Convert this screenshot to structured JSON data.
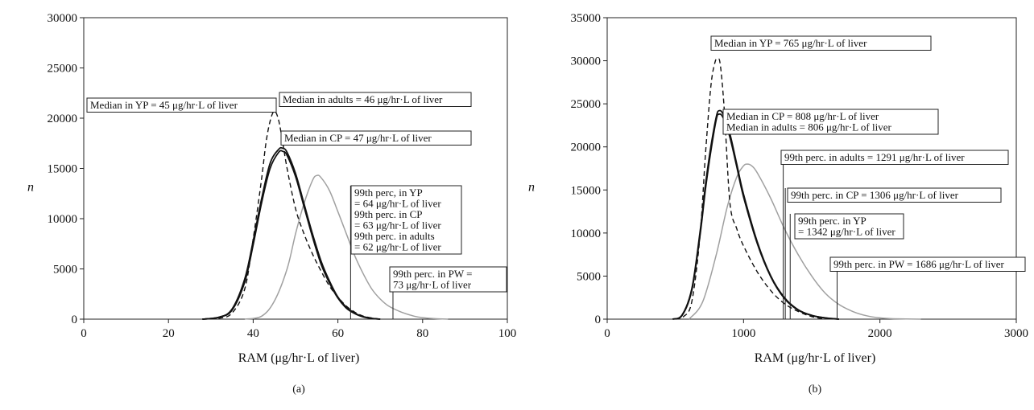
{
  "chart_data": [
    {
      "type": "line",
      "panel_label": "(a)",
      "xlabel": "RAM (μg/hr·L of liver)",
      "ylabel": "n",
      "xlim": [
        0,
        100
      ],
      "ylim": [
        0,
        30000
      ],
      "xticks": [
        0,
        20,
        40,
        60,
        80,
        100
      ],
      "yticks": [
        0,
        5000,
        10000,
        15000,
        20000,
        25000,
        30000
      ],
      "grid": false,
      "series": [
        {
          "key": "YP",
          "style": "dashed",
          "color": "#111111",
          "x": [
            28,
            32,
            35,
            38,
            40,
            42,
            43,
            44,
            45,
            46,
            47,
            48,
            50,
            52,
            54,
            56,
            58,
            60,
            62,
            64,
            66,
            68,
            70
          ],
          "y": [
            0,
            100,
            600,
            3000,
            8000,
            14000,
            17500,
            19700,
            20700,
            19800,
            17500,
            15000,
            11000,
            8500,
            6500,
            4800,
            3300,
            2200,
            1300,
            700,
            300,
            120,
            0
          ]
        },
        {
          "key": "CP",
          "style": "solid",
          "color": "#111111",
          "x": [
            28,
            32,
            35,
            38,
            40,
            42,
            44,
            46,
            47,
            48,
            50,
            52,
            54,
            56,
            58,
            60,
            62,
            64,
            66,
            68,
            70
          ],
          "y": [
            0,
            200,
            1000,
            4000,
            7800,
            12000,
            15500,
            16900,
            17000,
            16600,
            14500,
            11500,
            8500,
            5800,
            3800,
            2200,
            1200,
            600,
            250,
            80,
            0
          ]
        },
        {
          "key": "adults",
          "style": "solid",
          "color": "#111111",
          "x": [
            28,
            32,
            35,
            38,
            40,
            42,
            44,
            46,
            47,
            48,
            50,
            52,
            54,
            56,
            58,
            60,
            62,
            64,
            66,
            68,
            70
          ],
          "y": [
            0,
            200,
            900,
            3700,
            7400,
            11600,
            15000,
            16600,
            16700,
            16300,
            14200,
            11200,
            8200,
            5500,
            3600,
            2100,
            1100,
            550,
            220,
            70,
            0
          ]
        },
        {
          "key": "PW",
          "style": "solid",
          "color": "#a0a0a0",
          "x": [
            38,
            42,
            45,
            48,
            50,
            52,
            54,
            55,
            56,
            58,
            60,
            62,
            64,
            66,
            68,
            70,
            72,
            75,
            78,
            80,
            83,
            86
          ],
          "y": [
            0,
            300,
            1800,
            5000,
            8500,
            11500,
            13800,
            14300,
            14100,
            12800,
            10700,
            8500,
            6300,
            4500,
            3000,
            2000,
            1300,
            700,
            300,
            150,
            50,
            0
          ]
        }
      ],
      "annotations": [
        {
          "text": "Median in YP = 45 μg/hr·L of liver",
          "x": 45,
          "y": 20700
        },
        {
          "text": "Median in adults = 46 μg/hr·L of liver",
          "x": 46,
          "y": 16600
        },
        {
          "text": "Median in CP = 47 μg/hr·L of liver",
          "x": 47,
          "y": 17000
        },
        {
          "text": [
            "99th perc, in YP",
            "= 64 μg/hr·L of liver",
            "99th perc. in CP",
            "= 63 μg/hr·L of liver",
            "99th perc. in adults",
            "= 62 μg/hr·L of liver"
          ],
          "x": 63,
          "y": 0
        },
        {
          "text": [
            "99th perc. in PW =",
            "73 μg/hr·L of liver"
          ],
          "x": 73,
          "y": 0
        }
      ]
    },
    {
      "type": "line",
      "panel_label": "(b)",
      "xlabel": "RAM (μg/hr·L of liver)",
      "ylabel": "n",
      "xlim": [
        0,
        3000
      ],
      "ylim": [
        0,
        35000
      ],
      "xticks": [
        0,
        1000,
        2000,
        3000
      ],
      "yticks": [
        0,
        5000,
        10000,
        15000,
        20000,
        25000,
        30000,
        35000
      ],
      "grid": false,
      "series": [
        {
          "key": "YP",
          "style": "dashed",
          "color": "#111111",
          "x": [
            500,
            560,
            620,
            680,
            720,
            760,
            790,
            810,
            830,
            860,
            900,
            950,
            1000,
            1100,
            1200,
            1300,
            1400,
            1500,
            1600
          ],
          "y": [
            0,
            300,
            2000,
            9500,
            19000,
            27000,
            29800,
            30200,
            29500,
            24000,
            13500,
            10500,
            8500,
            5500,
            3300,
            1800,
            900,
            300,
            0
          ]
        },
        {
          "key": "CP",
          "style": "solid",
          "color": "#111111",
          "x": [
            480,
            550,
            620,
            680,
            720,
            760,
            800,
            820,
            850,
            900,
            950,
            1000,
            1100,
            1200,
            1300,
            1400,
            1500,
            1600,
            1700
          ],
          "y": [
            0,
            500,
            3500,
            10000,
            15500,
            20000,
            23500,
            24200,
            23800,
            21500,
            18000,
            14500,
            9000,
            5000,
            2500,
            1100,
            450,
            150,
            0
          ]
        },
        {
          "key": "adults",
          "style": "solid",
          "color": "#111111",
          "x": [
            480,
            550,
            620,
            680,
            720,
            760,
            800,
            820,
            850,
            900,
            950,
            1000,
            1100,
            1200,
            1300,
            1400,
            1500,
            1600,
            1700
          ],
          "y": [
            0,
            450,
            3300,
            9600,
            15000,
            19500,
            23200,
            23800,
            23400,
            21100,
            17700,
            14200,
            8800,
            4900,
            2400,
            1050,
            420,
            140,
            0
          ]
        },
        {
          "key": "PW",
          "style": "solid",
          "color": "#a0a0a0",
          "x": [
            600,
            700,
            800,
            880,
            950,
            1000,
            1030,
            1060,
            1100,
            1200,
            1300,
            1400,
            1500,
            1600,
            1700,
            1800,
            1900,
            2000,
            2100,
            2300
          ],
          "y": [
            0,
            2000,
            7500,
            13000,
            16500,
            17800,
            18000,
            17800,
            17000,
            14000,
            10500,
            7500,
            5000,
            3000,
            1700,
            900,
            400,
            150,
            50,
            0
          ]
        }
      ],
      "annotations": [
        {
          "text": "Median in YP = 765 μg/hr·L of liver",
          "x": 765,
          "y": 30200
        },
        {
          "text": [
            "Median in CP = 808 μg/hr·L of liver",
            "Median in adults = 806 μg/hr·L of liver"
          ],
          "x": 808,
          "y": 24200
        },
        {
          "text": "99th perc. in adults = 1291 μg/hr·L of liver",
          "x": 1291,
          "y": 0
        },
        {
          "text": "99th perc. in CP = 1306 μg/hr·L of liver",
          "x": 1306,
          "y": 0
        },
        {
          "text": [
            "99th perc. in YP",
            "= 1342 μg/hr·L of liver"
          ],
          "x": 1342,
          "y": 0
        },
        {
          "text": "99th perc. in PW = 1686 μg/hr·L of liver",
          "x": 1686,
          "y": 0
        }
      ]
    }
  ]
}
